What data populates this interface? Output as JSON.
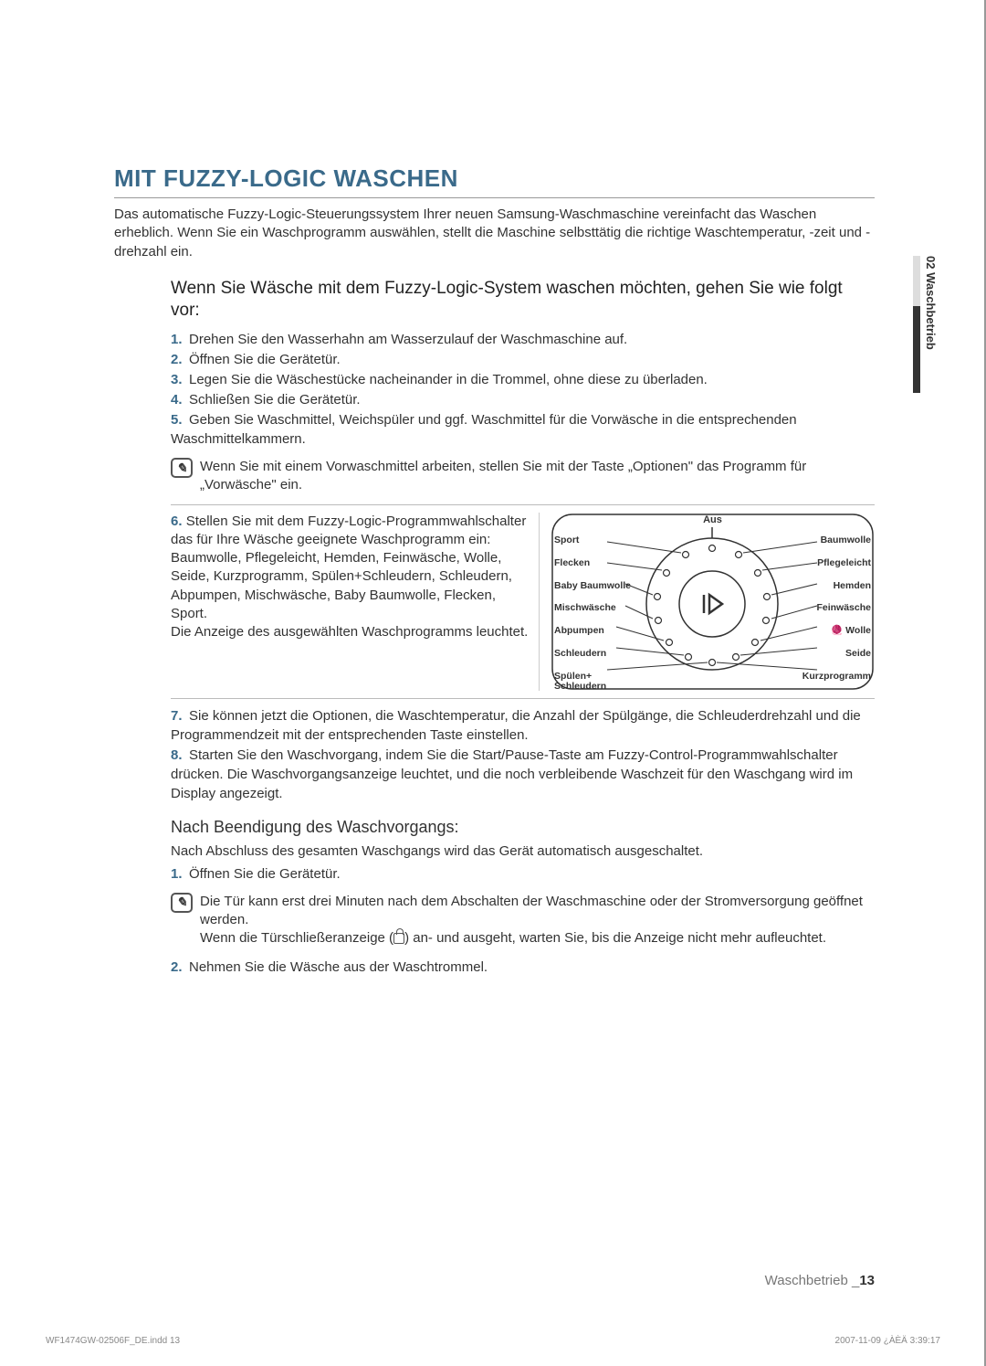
{
  "heading": "MIT FUZZY-LOGIC WASCHEN",
  "intro": "Das automatische Fuzzy-Logic-Steuerungssystem Ihrer neuen Samsung-Waschmaschine vereinfacht das Waschen erheblich. Wenn Sie ein Waschprogramm auswählen, stellt die Maschine selbsttätig die richtige Waschtemperatur, -zeit und -drehzahl ein.",
  "subheading": "Wenn Sie Wäsche mit dem Fuzzy-Logic-System waschen möchten, gehen Sie wie folgt vor:",
  "steps1": [
    "Drehen Sie den Wasserhahn am Wasserzulauf der Waschmaschine auf.",
    "Öffnen Sie die Gerätetür.",
    "Legen Sie die Wäschestücke nacheinander in die Trommel, ohne diese zu überladen.",
    "Schließen Sie die Gerätetür.",
    "Geben Sie Waschmittel, Weichspüler und ggf. Waschmittel für die Vorwäsche in die entsprechenden Waschmittelkammern."
  ],
  "note1": "Wenn Sie mit einem Vorwaschmittel arbeiten, stellen Sie mit der Taste „Optionen\" das Programm für „Vorwäsche\" ein.",
  "step6_prefix": "6.",
  "step6_text": "Stellen Sie mit dem Fuzzy-Logic-Programmwahlschalter das für Ihre Wäsche geeignete Waschprogramm ein: Baumwolle, Pflegeleicht, Hemden, Feinwäsche, Wolle, Seide, Kurzprogramm, Spülen+Schleudern, Schleudern, Abpumpen, Mischwäsche, Baby Baumwolle, Flecken, Sport.\nDie Anzeige des ausgewählten Waschprogramms leuchtet.",
  "dial": {
    "top": "Aus",
    "left": [
      "Sport",
      "Flecken",
      "Baby Baumwolle",
      "Mischwäsche",
      "Abpumpen",
      "Schleudern",
      "Spülen+\nSchleudern"
    ],
    "right": [
      "Baumwolle",
      "Pflegeleicht",
      "Hemden",
      "Feinwäsche",
      "Wolle",
      "Seide",
      "Kurzprogramm"
    ],
    "wool_icon": "🧶"
  },
  "steps2": [
    "Sie können jetzt die Optionen, die Waschtemperatur, die Anzahl der Spülgänge, die Schleuderdrehzahl und die Programmendzeit mit der entsprechenden Taste einstellen.",
    "Starten Sie den Waschvorgang, indem Sie die Start/Pause-Taste am Fuzzy-Control-Programmwahlschalter drücken. Die Waschvorgangsanzeige leuchtet, und die noch verbleibende Waschzeit für den Waschgang wird im Display angezeigt."
  ],
  "steps2_start": 7,
  "subheading2": "Nach Beendigung des Waschvorgangs:",
  "after_intro": "Nach Abschluss des gesamten Waschgangs wird das Gerät automatisch ausgeschaltet.",
  "after_step1": "Öffnen Sie die Gerätetür.",
  "note2a": "Die Tür kann erst drei Minuten nach dem Abschalten der Waschmaschine oder der Stromversorgung geöffnet werden.",
  "note2b_pre": "Wenn die Türschließeranzeige (",
  "note2b_post": ") an- und ausgeht, warten Sie, bis die Anzeige nicht mehr aufleuchtet.",
  "after_step2": "Nehmen Sie die Wäsche aus der Waschtrommel.",
  "side_tab": "02 Waschbetrieb",
  "footer_section": "Waschbetrieb _",
  "footer_page": "13",
  "print_left": "WF1474GW-02506F_DE.indd   13",
  "print_right": "2007-11-09   ¿ÀÈÄ 3:39:17",
  "colors": {
    "heading": "#3a6a8a",
    "text": "#333333",
    "rule": "#999999"
  }
}
